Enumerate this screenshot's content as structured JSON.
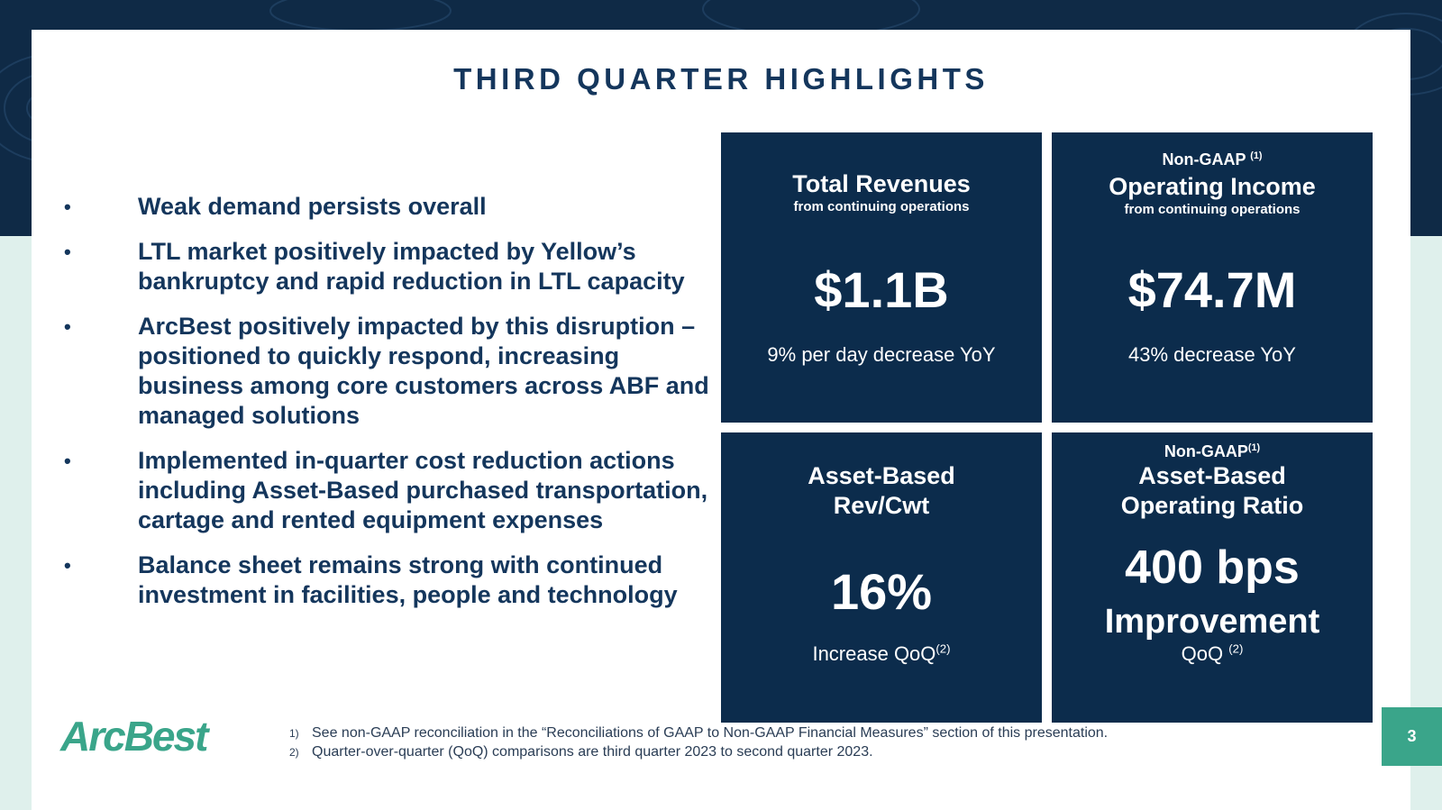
{
  "title": "THIRD QUARTER HIGHLIGHTS",
  "bullets": [
    "Weak demand persists overall",
    "LTL market positively impacted by Yellow’s bankruptcy and rapid reduction in LTL capacity",
    "ArcBest positively impacted by this disruption – positioned to quickly respond, increasing business among core customers across ABF and managed solutions",
    "Implemented in-quarter cost reduction actions including Asset-Based purchased transportation, cartage and rented equipment expenses",
    "Balance sheet remains strong with continued investment in facilities, people and technology"
  ],
  "bullet_marker": "•",
  "tiles": {
    "revenue": {
      "heading": "Total Revenues",
      "subheading": "from continuing operations",
      "value": "$1.1B",
      "change": "9% per day decrease YoY"
    },
    "operating_income": {
      "label": "Non-GAAP",
      "label_note": "(1)",
      "heading": "Operating Income",
      "subheading": "from continuing operations",
      "value": "$74.7M",
      "change": "43% decrease YoY"
    },
    "rev_cwt": {
      "heading_line1": "Asset-Based",
      "heading_line2": "Rev/Cwt",
      "value": "16%",
      "change": "Increase QoQ",
      "change_note": "(2)"
    },
    "operating_ratio": {
      "label": "Non-GAAP",
      "label_note": "(1)",
      "heading_line1": "Asset-Based",
      "heading_line2": "Operating Ratio",
      "value": "400 bps",
      "value_line2": "Improvement",
      "change": "QoQ",
      "change_note": "(2)"
    }
  },
  "logo_text": "ArcBest",
  "footnotes": [
    {
      "num": "1)",
      "text": "See non-GAAP reconciliation in the “Reconciliations of GAAP to Non-GAAP Financial Measures” section of this presentation."
    },
    {
      "num": "2)",
      "text": "Quarter-over-quarter (QoQ) comparisons are third quarter 2023 to second quarter 2023."
    }
  ],
  "page_number": "3",
  "colors": {
    "navy": "#0c2c4c",
    "title": "#14365c",
    "accent_green": "#3aa58a",
    "mint_background": "#dff0ec"
  }
}
